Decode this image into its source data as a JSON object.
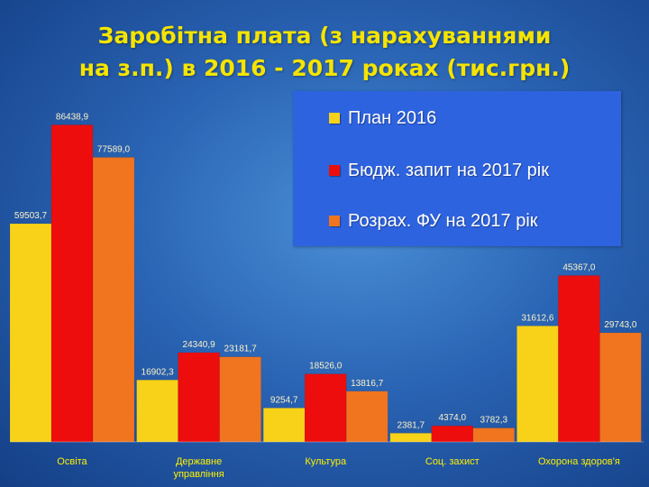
{
  "title": {
    "line1": "Заробітна плата (з нарахуваннями",
    "line2": "на з.п.) в 2016 - 2017 роках (тис.грн.)"
  },
  "colors": {
    "series1": "#f7d219",
    "series2": "#ee0d0d",
    "series3": "#f1741f",
    "value_label": "#fdf2c6",
    "axis_label": "#fff200",
    "legend_bg": "#2e63e0"
  },
  "chart_data": {
    "type": "bar",
    "title": "Заробітна плата (з нарахуваннями на з.п.) в 2016 - 2017 роках (тис.грн.)",
    "categories": [
      "Освіта",
      "Державне управління",
      "Культура",
      "Соц. захист",
      "Охорона здоров'я"
    ],
    "category_lines": [
      [
        "Освіта"
      ],
      [
        "Державне",
        "управління"
      ],
      [
        "Культура"
      ],
      [
        "Соц. захист"
      ],
      [
        "Охорона здоров'я"
      ]
    ],
    "series": [
      {
        "name": "План 2016",
        "values": [
          59503.7,
          16902.3,
          9254.7,
          2381.7,
          31612.6
        ],
        "labels": [
          "59503,7",
          "16902,3",
          "9254,7",
          "2381,7",
          "31612,6"
        ]
      },
      {
        "name": "Бюдж. запит на 2017 рік",
        "values": [
          86438.9,
          24340.9,
          18526.0,
          4374.0,
          45367.0
        ],
        "labels": [
          "86438,9",
          "24340,9",
          "18526,0",
          "4374,0",
          "45367,0"
        ]
      },
      {
        "name": "Розрах. ФУ на 2017 рік",
        "values": [
          77589.0,
          23181.7,
          13816.7,
          3782.3,
          29743.0
        ],
        "labels": [
          "77589,0",
          "23181,7",
          "13816,7",
          "3782,3",
          "29743,0"
        ]
      }
    ],
    "ylim": [
      0,
      90000
    ],
    "grid": false,
    "legend_position": "top-right"
  }
}
